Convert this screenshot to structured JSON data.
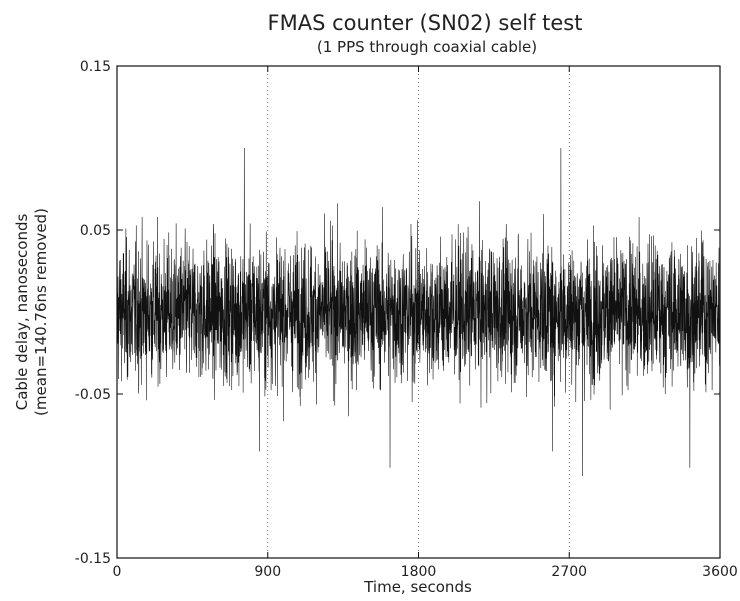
{
  "chart_data": {
    "type": "line",
    "title": "FMAS counter (SN02) self test",
    "subtitle": "(1 PPS through coaxial cable)",
    "xlabel": "Time, seconds",
    "ylabel_line1": "Cable delay, nanoseconds",
    "ylabel_line2": "(mean=140.76ns removed)",
    "xlim": [
      0,
      3600
    ],
    "ylim": [
      -0.15,
      0.15
    ],
    "x_ticks": [
      0,
      900,
      1800,
      2700,
      3600
    ],
    "x_tick_labels": [
      "0",
      "900",
      "1800",
      "2700",
      "3600"
    ],
    "y_ticks": [
      -0.15,
      -0.05,
      0.05,
      0.15
    ],
    "y_tick_labels": [
      "-0.15",
      "-0.05",
      "0.05",
      "0.15"
    ],
    "grid": "dotted vertical lines at 900, 1800, 2700",
    "sample_interval_s": 1,
    "series_color": "#111111",
    "notable_points": [
      {
        "x": 760,
        "y": 0.1
      },
      {
        "x": 850,
        "y": -0.085
      },
      {
        "x": 1630,
        "y": -0.095
      },
      {
        "x": 2650,
        "y": 0.1
      },
      {
        "x": 2600,
        "y": -0.085
      },
      {
        "x": 2780,
        "y": -0.1
      },
      {
        "x": 3420,
        "y": -0.095
      }
    ]
  }
}
